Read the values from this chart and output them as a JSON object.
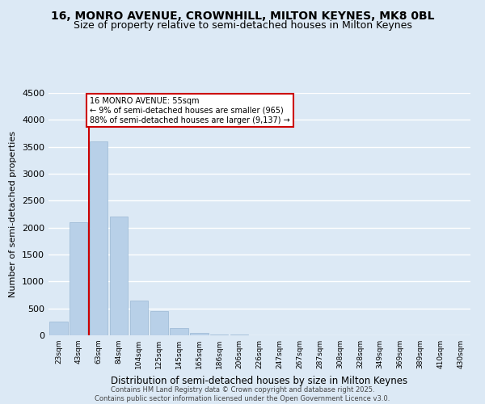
{
  "title_line1": "16, MONRO AVENUE, CROWNHILL, MILTON KEYNES, MK8 0BL",
  "title_line2": "Size of property relative to semi-detached houses in Milton Keynes",
  "xlabel": "Distribution of semi-detached houses by size in Milton Keynes",
  "ylabel": "Number of semi-detached properties",
  "footer": "Contains HM Land Registry data © Crown copyright and database right 2025.\nContains public sector information licensed under the Open Government Licence v3.0.",
  "categories": [
    "23sqm",
    "43sqm",
    "63sqm",
    "84sqm",
    "104sqm",
    "125sqm",
    "145sqm",
    "165sqm",
    "186sqm",
    "206sqm",
    "226sqm",
    "247sqm",
    "267sqm",
    "287sqm",
    "308sqm",
    "328sqm",
    "349sqm",
    "369sqm",
    "389sqm",
    "410sqm",
    "430sqm"
  ],
  "values": [
    250,
    2100,
    3600,
    2200,
    650,
    450,
    130,
    50,
    20,
    10,
    6,
    4,
    3,
    2,
    2,
    1,
    1,
    1,
    0,
    0,
    0
  ],
  "bar_color": "#b8d0e8",
  "bar_edge_color": "#9ab8d4",
  "vline_x": 1.5,
  "vline_color": "#cc0000",
  "annotation_title": "16 MONRO AVENUE: 55sqm",
  "annotation_line1": "← 9% of semi-detached houses are smaller (965)",
  "annotation_line2": "88% of semi-detached houses are larger (9,137) →",
  "annotation_box_color": "#cc0000",
  "ylim": [
    0,
    4500
  ],
  "yticks": [
    0,
    500,
    1000,
    1500,
    2000,
    2500,
    3000,
    3500,
    4000,
    4500
  ],
  "background_color": "#dce9f5",
  "plot_bg_color": "#dce9f5",
  "grid_color": "#ffffff",
  "title_fontsize": 10,
  "subtitle_fontsize": 9
}
